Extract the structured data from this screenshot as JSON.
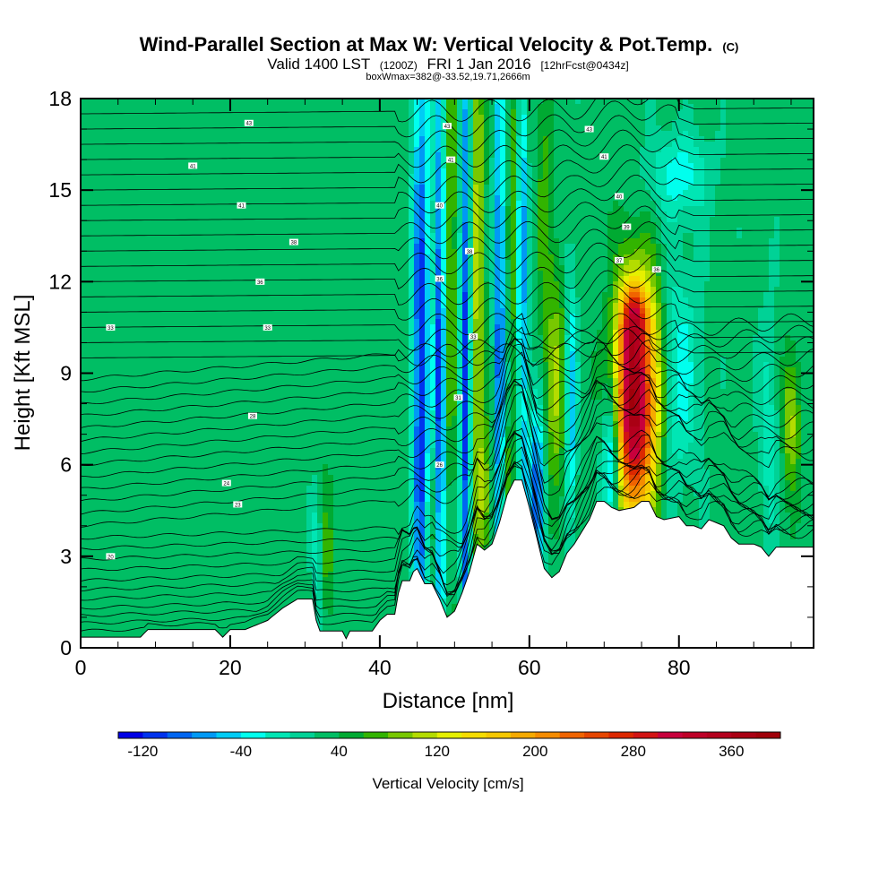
{
  "chart_data": {
    "type": "heatmap",
    "title": "Wind-Parallel Section at Max W: Vertical Velocity & Pot.Temp.",
    "title_mark": "(C)",
    "subtitle": {
      "main": "Valid 1400 LST",
      "utc": "(1200Z)",
      "date": "FRI 1 Jan 2016",
      "forecast": "[12hrFcst@0434z]"
    },
    "box_info": "boxWmax=382@-33.52,19.71,2666m",
    "xlabel": "Distance [nm]",
    "ylabel": "Height [Kft MSL]",
    "xlim": [
      0,
      98
    ],
    "ylim": [
      0,
      18
    ],
    "x_ticks": [
      0,
      20,
      40,
      60,
      80
    ],
    "y_ticks": [
      0,
      3,
      6,
      9,
      12,
      15,
      18
    ],
    "x_tick_labels": [
      "0",
      "20",
      "40",
      "60",
      "80"
    ],
    "y_tick_labels": [
      "0",
      "3",
      "6",
      "9",
      "12",
      "15",
      "18"
    ],
    "colorbar": {
      "label": "Vertical Velocity [cm/s]",
      "min": -140,
      "max": 400,
      "step": 20,
      "tick_values": [
        -120,
        -40,
        40,
        120,
        200,
        280,
        360
      ],
      "tick_labels": [
        "-120",
        "-40",
        "40",
        "120",
        "200",
        "280",
        "360"
      ],
      "colors": [
        "#0000e6",
        "#0033ee",
        "#0066f2",
        "#0099f5",
        "#00ccf5",
        "#00ffee",
        "#00e6b4",
        "#00d296",
        "#00be64",
        "#00aa32",
        "#32b400",
        "#78c800",
        "#b4dc00",
        "#e6f000",
        "#f5dc00",
        "#f5c800",
        "#f5aa00",
        "#f58c00",
        "#f06400",
        "#e64600",
        "#dc2800",
        "#d21414",
        "#c8003c",
        "#be0028",
        "#b4001e",
        "#aa0014",
        "#a0000a"
      ]
    },
    "background_w": 30,
    "terrain_kft": [
      [
        0,
        0.35
      ],
      [
        2,
        0.35
      ],
      [
        8,
        0.35
      ],
      [
        9,
        0.6
      ],
      [
        18,
        0.6
      ],
      [
        19,
        0.35
      ],
      [
        20,
        0.6
      ],
      [
        22,
        0.6
      ],
      [
        25,
        0.9
      ],
      [
        27,
        1.3
      ],
      [
        29,
        1.6
      ],
      [
        31,
        1.6
      ],
      [
        31.5,
        0.9
      ],
      [
        32,
        0.55
      ],
      [
        34,
        0.55
      ],
      [
        35,
        0.55
      ],
      [
        35.5,
        0.3
      ],
      [
        36,
        0.55
      ],
      [
        39,
        0.55
      ],
      [
        40,
        0.9
      ],
      [
        41,
        1.1
      ],
      [
        42,
        1.1
      ],
      [
        42.5,
        1.8
      ],
      [
        43,
        2.2
      ],
      [
        44,
        2.2
      ],
      [
        44.5,
        2.5
      ],
      [
        45,
        2.6
      ],
      [
        46,
        2.1
      ],
      [
        47,
        2.1
      ],
      [
        48,
        1.6
      ],
      [
        49,
        1.0
      ],
      [
        50,
        1.2
      ],
      [
        51,
        1.8
      ],
      [
        52,
        2.5
      ],
      [
        53,
        3.4
      ],
      [
        54,
        3.2
      ],
      [
        55,
        3.4
      ],
      [
        56,
        4.1
      ],
      [
        57,
        5.0
      ],
      [
        58,
        5.5
      ],
      [
        59,
        5.5
      ],
      [
        60,
        4.6
      ],
      [
        61,
        3.6
      ],
      [
        62,
        2.6
      ],
      [
        63,
        2.3
      ],
      [
        64,
        2.5
      ],
      [
        65,
        3.1
      ],
      [
        66,
        3.4
      ],
      [
        67,
        3.8
      ],
      [
        68,
        4.2
      ],
      [
        69,
        4.8
      ],
      [
        70,
        4.8
      ],
      [
        71,
        4.6
      ],
      [
        72,
        4.5
      ],
      [
        74,
        4.6
      ],
      [
        75,
        4.8
      ],
      [
        76,
        4.8
      ],
      [
        77,
        4.3
      ],
      [
        78,
        4.2
      ],
      [
        80,
        4.3
      ],
      [
        81,
        4.0
      ],
      [
        82,
        4.0
      ],
      [
        83,
        3.9
      ],
      [
        84,
        4.2
      ],
      [
        86,
        4.0
      ],
      [
        87,
        3.6
      ],
      [
        88,
        3.4
      ],
      [
        90,
        3.4
      ],
      [
        91,
        3.3
      ],
      [
        92,
        3.0
      ],
      [
        93,
        3.3
      ],
      [
        98,
        3.3
      ]
    ],
    "w_features": [
      {
        "x": 74,
        "y": 8.0,
        "sx": 1.7,
        "sy": 2.6,
        "amp": 350
      },
      {
        "x": 74,
        "y": 10.8,
        "sx": 1.3,
        "sy": 0.8,
        "amp": 120
      },
      {
        "x": 77,
        "y": 8.5,
        "sx": 1.0,
        "sy": 2.5,
        "amp": 70
      },
      {
        "x": 63.5,
        "y": 8.5,
        "sx": 1.2,
        "sy": 3.0,
        "amp": 70
      },
      {
        "x": 53,
        "y": 12.5,
        "sx": 0.7,
        "sy": 7.0,
        "amp": 80
      },
      {
        "x": 49.5,
        "y": 13.0,
        "sx": 0.5,
        "sy": 6.0,
        "amp": 60
      },
      {
        "x": 58,
        "y": 14.0,
        "sx": 0.5,
        "sy": 5.0,
        "amp": 50
      },
      {
        "x": 62,
        "y": 15.5,
        "sx": 0.6,
        "sy": 3.0,
        "amp": 40
      },
      {
        "x": 54,
        "y": 5.0,
        "sx": 0.8,
        "sy": 1.5,
        "amp": 60
      },
      {
        "x": 57,
        "y": 5.5,
        "sx": 0.5,
        "sy": 1.2,
        "amp": 50
      },
      {
        "x": 47,
        "y": 3.5,
        "sx": 0.6,
        "sy": 2.0,
        "amp": 40
      },
      {
        "x": 33,
        "y": 3.0,
        "sx": 0.6,
        "sy": 1.5,
        "amp": 40
      },
      {
        "x": 95,
        "y": 7.5,
        "sx": 0.8,
        "sy": 1.5,
        "amp": 80
      },
      {
        "x": 45.5,
        "y": 9.0,
        "sx": 0.8,
        "sy": 8.0,
        "amp": -150
      },
      {
        "x": 48,
        "y": 9.0,
        "sx": 0.5,
        "sy": 8.0,
        "amp": -140
      },
      {
        "x": 51.5,
        "y": 8.5,
        "sx": 0.5,
        "sy": 9.0,
        "amp": -150
      },
      {
        "x": 56,
        "y": 10.0,
        "sx": 0.5,
        "sy": 8.0,
        "amp": -130
      },
      {
        "x": 59,
        "y": 12.0,
        "sx": 0.5,
        "sy": 6.0,
        "amp": -110
      },
      {
        "x": 61,
        "y": 5.0,
        "sx": 0.8,
        "sy": 2.0,
        "amp": -140
      },
      {
        "x": 65.5,
        "y": 8.0,
        "sx": 0.6,
        "sy": 3.0,
        "amp": -100
      },
      {
        "x": 71,
        "y": 6.0,
        "sx": 0.8,
        "sy": 1.5,
        "amp": -120
      },
      {
        "x": 80,
        "y": 9.0,
        "sx": 2.0,
        "sy": 2.5,
        "amp": -60
      },
      {
        "x": 80,
        "y": 15.5,
        "sx": 3.0,
        "sy": 1.0,
        "amp": -60
      },
      {
        "x": 31.5,
        "y": 3.0,
        "sx": 0.5,
        "sy": 1.5,
        "amp": -50
      },
      {
        "x": 92,
        "y": 7.0,
        "sx": 1.0,
        "sy": 3.0,
        "amp": -40
      }
    ],
    "theta_contours": {
      "low_levels_kft": [
        0.55,
        0.8,
        1.05,
        1.3,
        1.6,
        1.9,
        2.2,
        2.55,
        2.9,
        3.25,
        3.6,
        4.0,
        4.4,
        4.8,
        5.2,
        5.6,
        6.0,
        6.4,
        6.8,
        7.2,
        7.6,
        8.0,
        8.4,
        8.8
      ],
      "upper_levels_kft": [
        9.5,
        10.0,
        10.5,
        11.0,
        11.5,
        12.0,
        12.5,
        13.0,
        13.5,
        14.0,
        14.5,
        15.0,
        15.5,
        16.0,
        16.5,
        17.0,
        17.5
      ]
    },
    "contour_labels": [
      {
        "x": 22.5,
        "y": 17.2,
        "text": "43"
      },
      {
        "x": 15,
        "y": 15.8,
        "text": "41"
      },
      {
        "x": 21.5,
        "y": 14.5,
        "text": "41"
      },
      {
        "x": 28.5,
        "y": 13.3,
        "text": "38"
      },
      {
        "x": 24,
        "y": 12.0,
        "text": "36"
      },
      {
        "x": 4,
        "y": 10.5,
        "text": "33"
      },
      {
        "x": 25,
        "y": 10.5,
        "text": "33"
      },
      {
        "x": 23,
        "y": 7.6,
        "text": "28"
      },
      {
        "x": 19.5,
        "y": 5.4,
        "text": "24"
      },
      {
        "x": 21,
        "y": 4.7,
        "text": "23"
      },
      {
        "x": 4,
        "y": 3.0,
        "text": "20"
      },
      {
        "x": 49,
        "y": 17.1,
        "text": "43"
      },
      {
        "x": 49.5,
        "y": 16.0,
        "text": "41"
      },
      {
        "x": 48,
        "y": 14.5,
        "text": "40"
      },
      {
        "x": 52,
        "y": 13.0,
        "text": "38"
      },
      {
        "x": 48,
        "y": 12.1,
        "text": "36"
      },
      {
        "x": 52.5,
        "y": 10.2,
        "text": "33"
      },
      {
        "x": 50.5,
        "y": 8.2,
        "text": "31"
      },
      {
        "x": 48,
        "y": 6.0,
        "text": "26"
      },
      {
        "x": 68,
        "y": 17.0,
        "text": "43"
      },
      {
        "x": 70,
        "y": 16.1,
        "text": "41"
      },
      {
        "x": 72,
        "y": 14.8,
        "text": "40"
      },
      {
        "x": 73,
        "y": 13.8,
        "text": "39"
      },
      {
        "x": 72,
        "y": 12.7,
        "text": "37"
      },
      {
        "x": 77,
        "y": 12.4,
        "text": "36"
      }
    ]
  }
}
